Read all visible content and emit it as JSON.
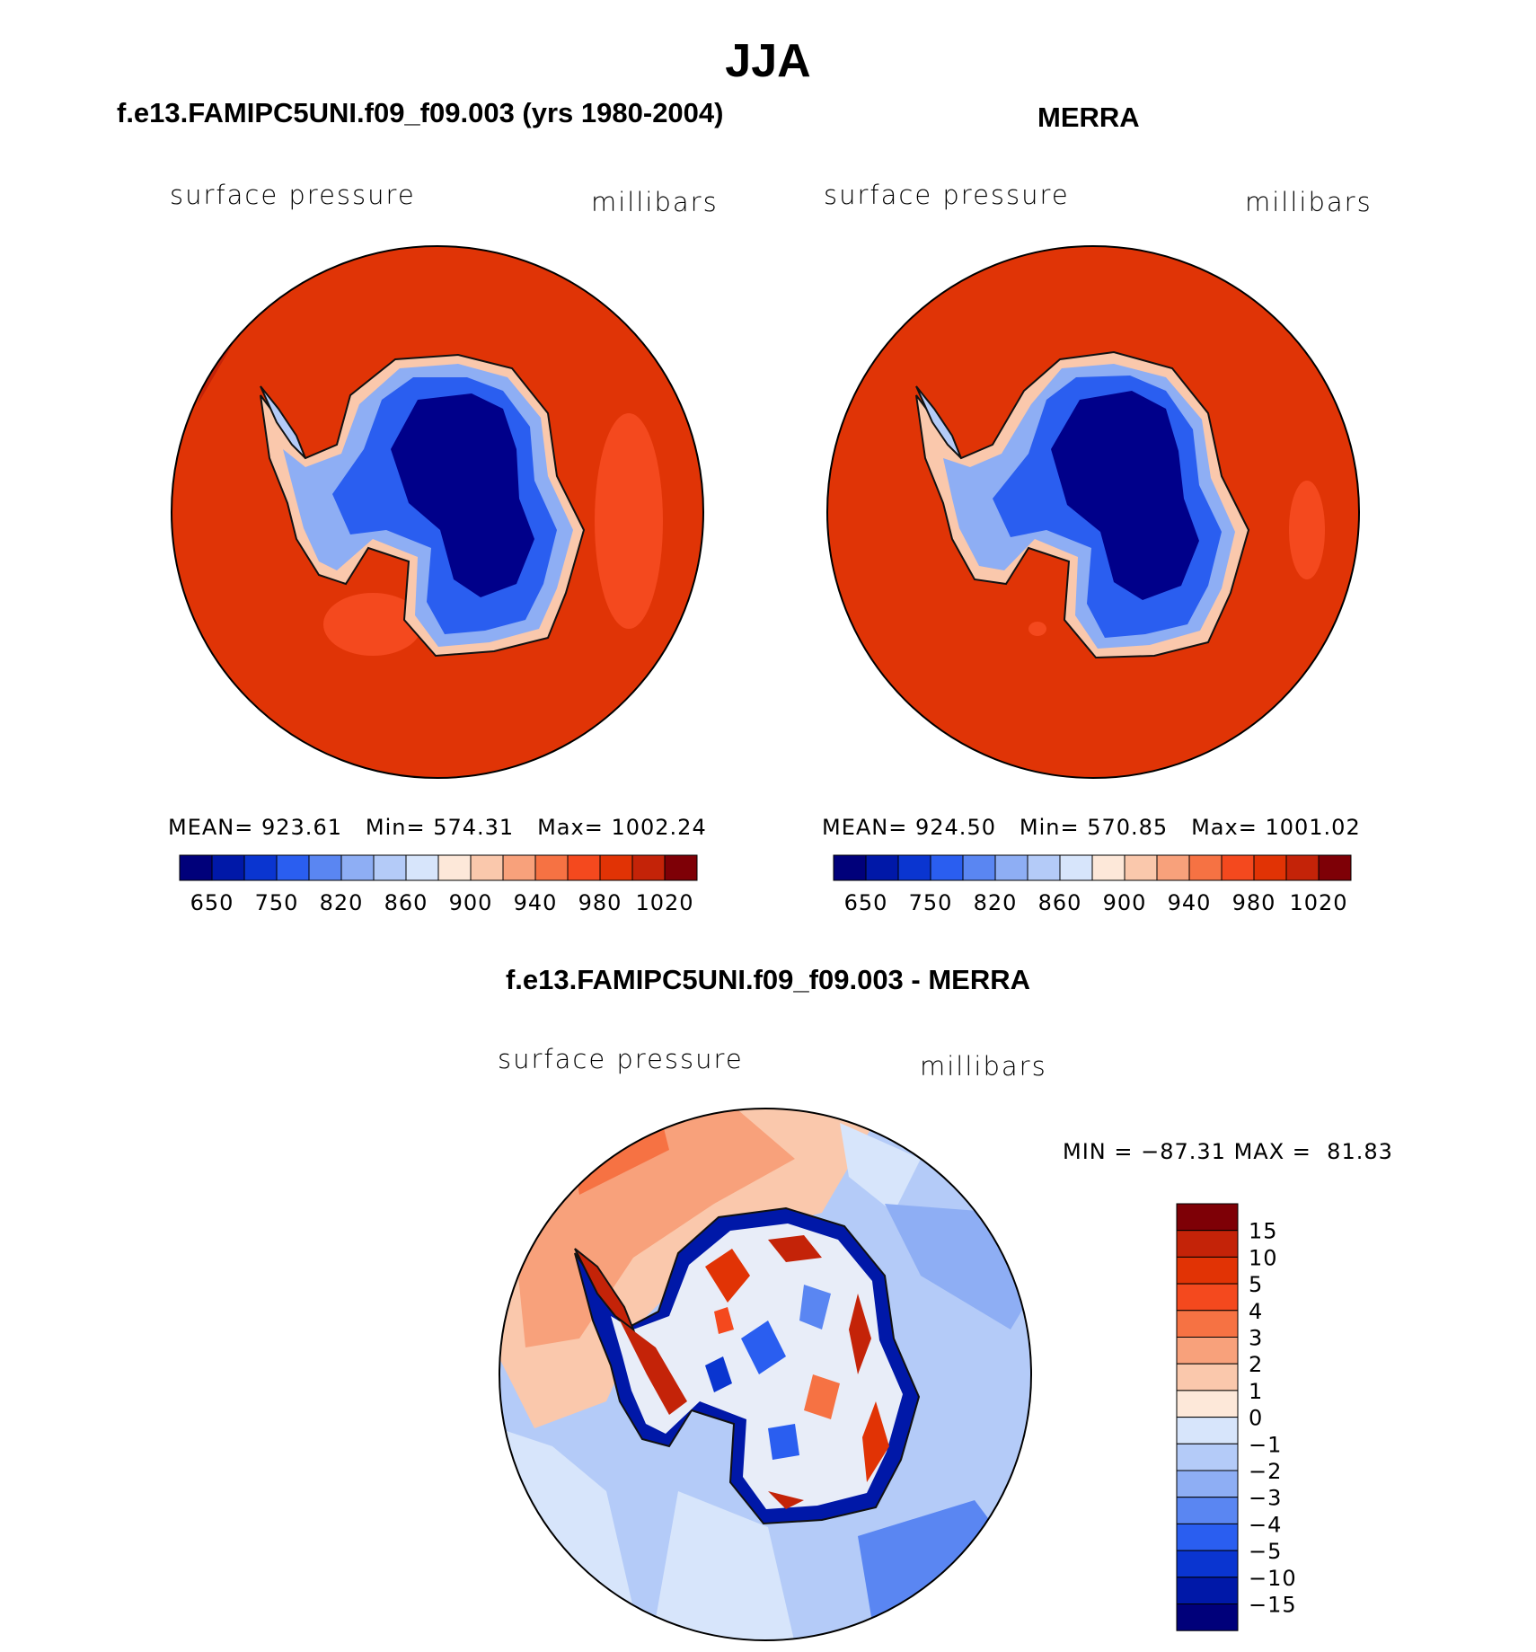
{
  "title": "JJA",
  "panels": [
    {
      "title": "f.e13.FAMIPC5UNI.f09_f09.003 (yrs 1980-2004)",
      "variable": "surface pressure",
      "units": "millibars",
      "stats": {
        "mean": "923.61",
        "min": "574.31",
        "max": "1002.24"
      }
    },
    {
      "title": "MERRA",
      "variable": "surface pressure",
      "units": "millibars",
      "stats": {
        "mean": "924.50",
        "min": "570.85",
        "max": "1001.02"
      }
    }
  ],
  "stat_labels": {
    "mean": "MEAN=",
    "min": "Min=",
    "max": "Max="
  },
  "diff_panel": {
    "title": "f.e13.FAMIPC5UNI.f09_f09.003 - MERRA",
    "variable": "surface pressure",
    "units": "millibars",
    "min_label": "MIN =",
    "min": "−87.31",
    "max_label": "MAX =",
    "max": "81.83"
  },
  "colorbar_abs": {
    "colors": [
      "#00007a",
      "#0018a8",
      "#0a35d0",
      "#2a5ef0",
      "#5a86f2",
      "#8eaef4",
      "#b4cbf8",
      "#d7e5fb",
      "#fde8d9",
      "#fac8ac",
      "#f8a17b",
      "#f67243",
      "#f4491e",
      "#e13305",
      "#c42308",
      "#7e0006"
    ],
    "tick_labels": [
      "650",
      "750",
      "820",
      "860",
      "900",
      "940",
      "980",
      "1020"
    ]
  },
  "colorbar_diff": {
    "colors": [
      "#7e0006",
      "#c42308",
      "#e13305",
      "#f4491e",
      "#f67243",
      "#f8a17b",
      "#fac8ac",
      "#fde8d9",
      "#d7e5fb",
      "#b4cbf8",
      "#8eaef4",
      "#5a86f2",
      "#2a5ef0",
      "#0a35d0",
      "#0018a8",
      "#00007a"
    ],
    "tick_labels": [
      "15",
      "10",
      "5",
      "4",
      "3",
      "2",
      "1",
      "0",
      "−1",
      "−2",
      "−3",
      "−4",
      "−5",
      "−10",
      "−15"
    ]
  },
  "map_colors": {
    "ocean_abs": "#e03406",
    "ocean_abs_light": "#f4491e",
    "ice_deep": "#00008a",
    "ice_mid": "#0a35d0",
    "ice_light": "#5a86f2",
    "diff_pos": "#f8a17b",
    "diff_neg_light": "#d7e5fb",
    "diff_neg": "#b4cbf8"
  }
}
